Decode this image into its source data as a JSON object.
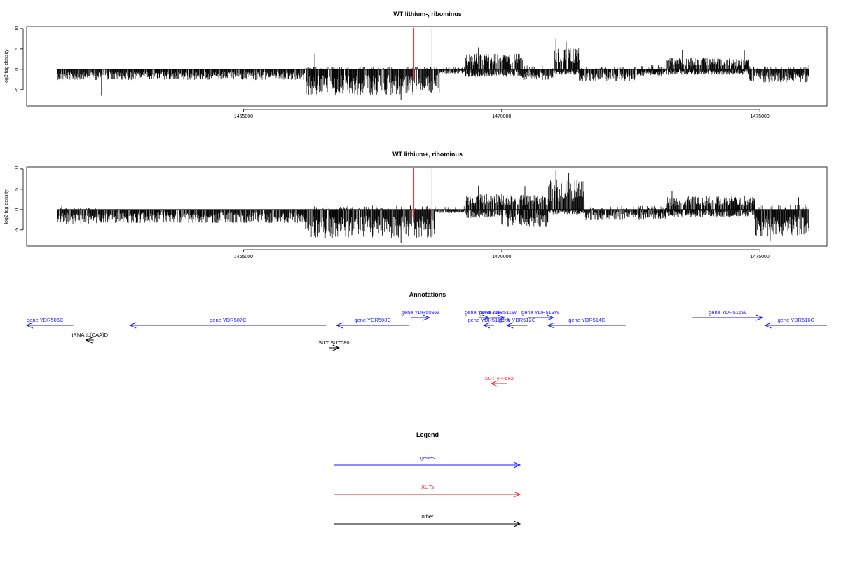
{
  "chart_data": [
    {
      "type": "bar",
      "title": "WT lithium-, ribominus",
      "ylabel": "log2 tag density",
      "xlim": [
        1460800,
        1476300
      ],
      "ylim": [
        -9,
        10.5
      ],
      "yticks": [
        -5,
        0,
        5,
        10
      ],
      "xticks": [
        1465000,
        1470000,
        1475000
      ],
      "xtick_labels": [
        "1465000",
        "1470000",
        "1475000"
      ],
      "marker_color": "#e8262b",
      "markers_x": [
        1468300,
        1468650
      ],
      "data_extent": [
        1461400,
        1475950
      ],
      "profile": [
        {
          "start": 1461400,
          "end": 1466200,
          "neg": -2.3,
          "pos": 0
        },
        {
          "start": 1466200,
          "end": 1468800,
          "neg": -5.6,
          "pos": 0.6
        },
        {
          "start": 1468800,
          "end": 1469300,
          "neg": -0.9,
          "pos": 0.5
        },
        {
          "start": 1469300,
          "end": 1470400,
          "neg": -1.6,
          "pos": 3.2
        },
        {
          "start": 1470400,
          "end": 1471000,
          "neg": -2.4,
          "pos": 0.8
        },
        {
          "start": 1471000,
          "end": 1471500,
          "neg": -1.2,
          "pos": 4.6
        },
        {
          "start": 1471500,
          "end": 1472600,
          "neg": -2.6,
          "pos": 0.5
        },
        {
          "start": 1472600,
          "end": 1473200,
          "neg": -1.4,
          "pos": 1.0
        },
        {
          "start": 1473200,
          "end": 1474800,
          "neg": -1.2,
          "pos": 2.4
        },
        {
          "start": 1474800,
          "end": 1475950,
          "neg": -2.8,
          "pos": 0.6
        }
      ],
      "spikes": [
        {
          "x": 1462250,
          "y": -6.5
        },
        {
          "x": 1466250,
          "y": 3.5
        },
        {
          "x": 1466380,
          "y": 3.8
        },
        {
          "x": 1468050,
          "y": -7.5
        },
        {
          "x": 1469550,
          "y": 5.4
        },
        {
          "x": 1471050,
          "y": 7.6
        },
        {
          "x": 1471250,
          "y": 6.8
        },
        {
          "x": 1473500,
          "y": 4.8
        },
        {
          "x": 1474700,
          "y": 4.6
        },
        {
          "x": 1475950,
          "y": 1.0
        }
      ]
    },
    {
      "type": "bar",
      "title": "WT lithium+, ribominus",
      "ylabel": "log2 tag density",
      "xlim": [
        1460800,
        1476300
      ],
      "ylim": [
        -9,
        10.5
      ],
      "yticks": [
        -5,
        0,
        5,
        10
      ],
      "xticks": [
        1465000,
        1470000,
        1475000
      ],
      "xtick_labels": [
        "1465000",
        "1470000",
        "1475000"
      ],
      "marker_color": "#e8262b",
      "markers_x": [
        1468300,
        1468650
      ],
      "data_extent": [
        1461400,
        1475950
      ],
      "profile": [
        {
          "start": 1461400,
          "end": 1462200,
          "neg": -3.2,
          "pos": 0.4
        },
        {
          "start": 1462200,
          "end": 1466200,
          "neg": -2.9,
          "pos": 0
        },
        {
          "start": 1466200,
          "end": 1468700,
          "neg": -6.2,
          "pos": 0.8
        },
        {
          "start": 1468700,
          "end": 1469300,
          "neg": -0.8,
          "pos": 0.7
        },
        {
          "start": 1469300,
          "end": 1470000,
          "neg": -1.8,
          "pos": 3.2
        },
        {
          "start": 1470000,
          "end": 1470900,
          "neg": -3.6,
          "pos": 3.0
        },
        {
          "start": 1470900,
          "end": 1471600,
          "neg": -1.0,
          "pos": 6.3
        },
        {
          "start": 1471600,
          "end": 1473200,
          "neg": -2.3,
          "pos": 0.8
        },
        {
          "start": 1473200,
          "end": 1474900,
          "neg": -1.6,
          "pos": 2.8
        },
        {
          "start": 1474900,
          "end": 1475950,
          "neg": -5.8,
          "pos": 1.0
        }
      ],
      "spikes": [
        {
          "x": 1461480,
          "y": 0.9
        },
        {
          "x": 1466250,
          "y": 2.1
        },
        {
          "x": 1468050,
          "y": -8.2
        },
        {
          "x": 1469550,
          "y": 5.9
        },
        {
          "x": 1470450,
          "y": 5.8
        },
        {
          "x": 1471050,
          "y": 9.8
        },
        {
          "x": 1471300,
          "y": 9.0
        },
        {
          "x": 1473300,
          "y": 4.6
        },
        {
          "x": 1475200,
          "y": -7.6
        },
        {
          "x": 1475750,
          "y": 3.0
        }
      ]
    }
  ],
  "annotations": {
    "title": "Annotations",
    "xlim": [
      1460800,
      1476300
    ],
    "features": [
      {
        "label": "gene YDR506C",
        "start": 1461700,
        "end": 1460800,
        "track": 1,
        "kind": "gene",
        "label_x": 1460800
      },
      {
        "label": "gene YDR507C",
        "start": 1466600,
        "end": 1462800,
        "track": 1,
        "kind": "gene"
      },
      {
        "label": "gene YDR508C",
        "start": 1468200,
        "end": 1466800,
        "track": 1,
        "kind": "gene"
      },
      {
        "label": "gene YDR509W",
        "start": 1468250,
        "end": 1468600,
        "track": 0,
        "kind": "gene"
      },
      {
        "label": "gene YDR510W",
        "start": 1469550,
        "end": 1469750,
        "track": 0,
        "kind": "gene"
      },
      {
        "label": "gene YDR511W",
        "start": 1469800,
        "end": 1470050,
        "track": 0,
        "kind": "gene"
      },
      {
        "label": "gene YDR510C-A",
        "start": 1469850,
        "end": 1469650,
        "track": 1,
        "kind": "gene"
      },
      {
        "label": "gene YDR512C",
        "start": 1470500,
        "end": 1470100,
        "track": 1,
        "kind": "gene"
      },
      {
        "label": "gene YDR513W",
        "start": 1470500,
        "end": 1471000,
        "track": 0,
        "kind": "gene"
      },
      {
        "label": "gene YDR514C",
        "start": 1472400,
        "end": 1470900,
        "track": 1,
        "kind": "gene"
      },
      {
        "label": "gene YDR515W",
        "start": 1473700,
        "end": 1475050,
        "track": 0,
        "kind": "gene"
      },
      {
        "label": "gene YDR516C",
        "start": 1476300,
        "end": 1475100,
        "track": 1,
        "kind": "gene"
      },
      {
        "label": "tRNA tL(CAA)D",
        "start": 1462100,
        "end": 1461950,
        "track": 2,
        "kind": "other"
      },
      {
        "label": "SUT SUT080",
        "start": 1466650,
        "end": 1466850,
        "track": 3,
        "kind": "other"
      },
      {
        "label": "XUT 4R-592",
        "start": 1470100,
        "end": 1469800,
        "track": 5,
        "kind": "xut"
      }
    ]
  },
  "legend": {
    "title": "Legend",
    "items": [
      {
        "label": "genes",
        "kind": "gene"
      },
      {
        "label": "XUTs",
        "kind": "xut"
      },
      {
        "label": "other",
        "kind": "other"
      }
    ]
  },
  "colors": {
    "gene": "#1a1aff",
    "xut": "#e8262b",
    "other": "#000000",
    "axis": "#000000"
  }
}
